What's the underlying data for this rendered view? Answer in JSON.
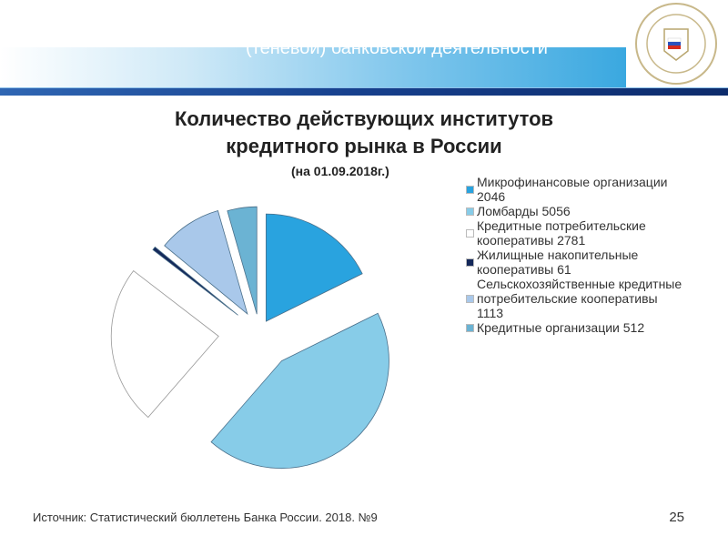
{
  "header": {
    "title": "(теневой) банковской деятельности",
    "logo": "Финансовый университет при Правительстве Российской Федерации"
  },
  "chart_data": {
    "type": "pie",
    "title": "Количество действующих институтов кредитного рынка в России",
    "subtitle": "(на 01.09.2018г.)",
    "legend_position": "right",
    "slices": [
      {
        "label": "Микрофинансовые организации 2046",
        "value": 2046,
        "color": "#29a3df",
        "explode": 14
      },
      {
        "label": "Ломбарды 5056",
        "value": 5056,
        "color": "#87cce8",
        "explode": 40
      },
      {
        "label": "Кредитные потребительские кооперативы 2781",
        "value": 2781,
        "color": "#ffffff",
        "explode": 45
      },
      {
        "label": "Жилищные накопительные кооперативы 61",
        "value": 61,
        "color": "#14285a",
        "explode": 30
      },
      {
        "label": "Сельскохозяйственные кредитные потребительские кооперативы 1113",
        "value": 1113,
        "color": "#a9c8ea",
        "explode": 24
      },
      {
        "label": "Кредитные организации 512",
        "value": 512,
        "color": "#6bb3d3",
        "explode": 20
      }
    ]
  },
  "title_line1": "Количество действующих институтов",
  "title_line2": "кредитного рынка в России",
  "footer": {
    "source": "Источник: Статистический бюллетень Банка России. 2018. №9",
    "page": "25"
  }
}
